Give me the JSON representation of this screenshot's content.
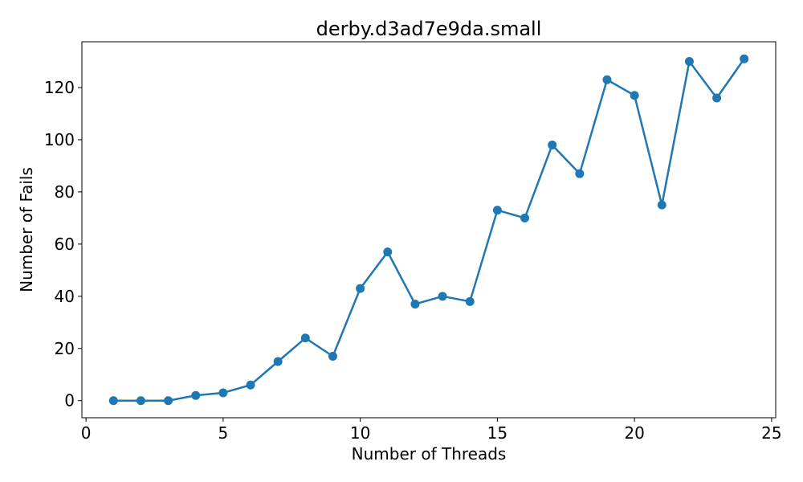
{
  "chart_data": {
    "type": "line",
    "title": "derby.d3ad7e9da.small",
    "xlabel": "Number of Threads",
    "ylabel": "Number of Fails",
    "x": [
      1,
      2,
      3,
      4,
      5,
      6,
      7,
      8,
      9,
      10,
      11,
      12,
      13,
      14,
      15,
      16,
      17,
      18,
      19,
      20,
      21,
      22,
      23,
      24
    ],
    "series": [
      {
        "values": [
          0,
          0,
          0,
          2,
          3,
          6,
          15,
          24,
          17,
          43,
          57,
          37,
          40,
          38,
          73,
          70,
          98,
          87,
          123,
          117,
          75,
          130,
          116,
          131
        ]
      }
    ],
    "xlim": [
      -0.15,
      25.15
    ],
    "ylim": [
      -6.55,
      137.55
    ],
    "xticks": [
      0,
      5,
      10,
      15,
      20,
      25
    ],
    "yticks": [
      0,
      20,
      40,
      60,
      80,
      100,
      120
    ],
    "grid": false,
    "legend": "none",
    "line_color": "#1f77b4",
    "marker": "circle"
  }
}
